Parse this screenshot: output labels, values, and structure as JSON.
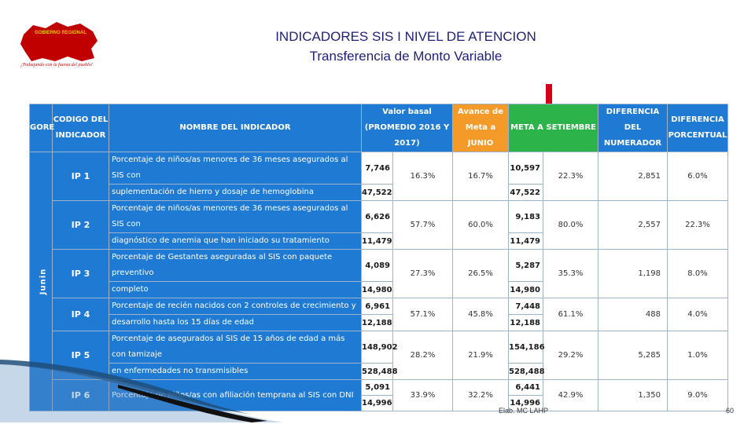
{
  "logo": {
    "region": "GOBIERNO REGIONAL",
    "name": "JUNIN",
    "tagline": "¡Trabajando con la fuerza del pueblo!",
    "colors": {
      "red": "#c00000",
      "yellow": "#f2c200"
    }
  },
  "title": "INDICADORES SIS I NIVEL DE ATENCION",
  "subtitle": "Transferencia de Monto Variable",
  "table": {
    "headers": {
      "gore": "GORE",
      "code": "CODIGO DEL INDICADOR",
      "name": "NOMBRE DEL INDICADOR",
      "basal": "Valor basal (PROMEDIO 2016 Y 2017)",
      "avance": "Avance de Meta a JUNIO",
      "meta": "META A SETIEMBRE",
      "diff_num": "DIFERENCIA DEL NUMERADOR",
      "diff_pct": "DIFERENCIA PORCENTUAL"
    },
    "gore_value": "Junin",
    "rows": [
      {
        "code": "IP 1",
        "name1": "Porcentaje de niños/as menores de 36 meses asegurados al SIS con",
        "name2": "suplementación de hierro y dosaje de hemoglobina",
        "basal_num": "7,746",
        "basal_den": "47,522",
        "basal_pct": "16.3%",
        "avance": "16.7%",
        "meta_num": "10,597",
        "meta_den": "47,522",
        "meta_pct": "22.3%",
        "diff_num": "2,851",
        "diff_pct": "6.0%"
      },
      {
        "code": "IP 2",
        "name1": "Porcentaje de niños/as menores de 36 meses asegurados al SIS con",
        "name2": "diagnóstico de anemia que han iniciado su tratamiento",
        "basal_num": "6,626",
        "basal_den": "11,479",
        "basal_pct": "57.7%",
        "avance": "60.0%",
        "meta_num": "9,183",
        "meta_den": "11,479",
        "meta_pct": "80.0%",
        "diff_num": "2,557",
        "diff_pct": "22.3%"
      },
      {
        "code": "IP 3",
        "name1": "Porcentaje de Gestantes aseguradas al SIS con paquete preventivo",
        "name2": "completo",
        "basal_num": "4,089",
        "basal_den": "14,980",
        "basal_pct": "27.3%",
        "avance": "26.5%",
        "meta_num": "5,287",
        "meta_den": "14,980",
        "meta_pct": "35.3%",
        "diff_num": "1,198",
        "diff_pct": "8.0%"
      },
      {
        "code": "IP 4",
        "name1": "Porcentaje de recién nacidos con 2 controles de crecimiento y",
        "name2": "desarrollo hasta los 15 días de edad",
        "basal_num": "6,961",
        "basal_den": "12,188",
        "basal_pct": "57.1%",
        "avance": "45.8%",
        "meta_num": "7,448",
        "meta_den": "12,188",
        "meta_pct": "61.1%",
        "diff_num": "488",
        "diff_pct": "4.0%"
      },
      {
        "code": "IP 5",
        "name1": "Porcentaje de asegurados al SIS de 15 años de edad a más  con tamizaje",
        "name2": "en enfermedades no transmisibles",
        "basal_num": "148,902",
        "basal_den": "528,488",
        "basal_pct": "28.2%",
        "avance": "21.9%",
        "meta_num": "154,186",
        "meta_den": "528,488",
        "meta_pct": "29.2%",
        "diff_num": "5,285",
        "diff_pct": "1.0%"
      },
      {
        "code": "IP 6",
        "name1": "Porcentaje de niños/as con afiliación temprana al SIS con DNI",
        "name2": "",
        "basal_num": "5,091",
        "basal_den": "14,996",
        "basal_pct": "33.9%",
        "avance": "32.2%",
        "meta_num": "6,441",
        "meta_den": "14,996",
        "meta_pct": "42.9%",
        "diff_num": "1,350",
        "diff_pct": "9.0%"
      }
    ]
  },
  "footer": "Elab. MC LAHP",
  "page_number": "60",
  "colors": {
    "header_blue": "#1f7ad3",
    "header_green": "#2cb34a",
    "header_orange": "#f39a28",
    "arrow_red": "#d4001a",
    "title_navy": "#1f1f7a"
  }
}
